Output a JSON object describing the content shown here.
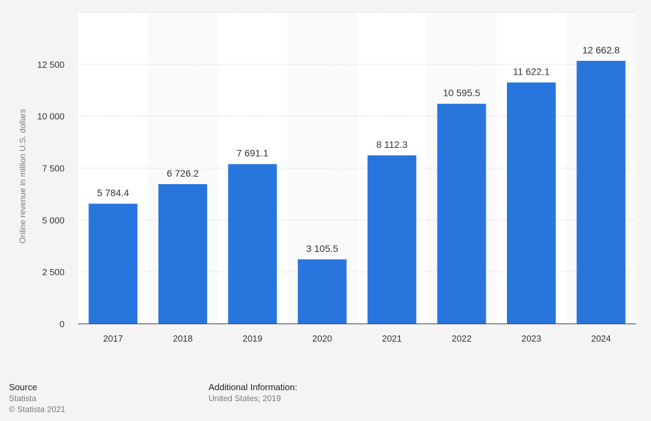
{
  "chart_data": {
    "type": "bar",
    "categories": [
      "2017",
      "2018",
      "2019",
      "2020",
      "2021",
      "2022",
      "2023",
      "2024"
    ],
    "values": [
      5784.4,
      6726.2,
      7691.1,
      3105.5,
      8112.3,
      10595.5,
      11622.1,
      12662.8
    ],
    "value_labels": [
      "5 784.4",
      "6 726.2",
      "7 691.1",
      "3 105.5",
      "8 112.3",
      "10 595.5",
      "11 622.1",
      "12 662.8"
    ],
    "ylabel": "Online revenue in million U.S. dollars",
    "ylim": [
      0,
      15000
    ],
    "yticks": [
      0,
      2500,
      5000,
      7500,
      10000,
      12500
    ],
    "ytick_labels": [
      "0",
      "2 500",
      "5 000",
      "7 500",
      "10 000",
      "12 500"
    ],
    "grid": true,
    "bar_color": "#2876dd",
    "plot_background": "#ffffff",
    "alt_column_background": "#fafafa"
  },
  "footer": {
    "source_heading": "Source",
    "source_name": "Statista",
    "copyright": "© Statista 2021",
    "additional_heading": "Additional Information:",
    "additional_text": "United States; 2019"
  }
}
